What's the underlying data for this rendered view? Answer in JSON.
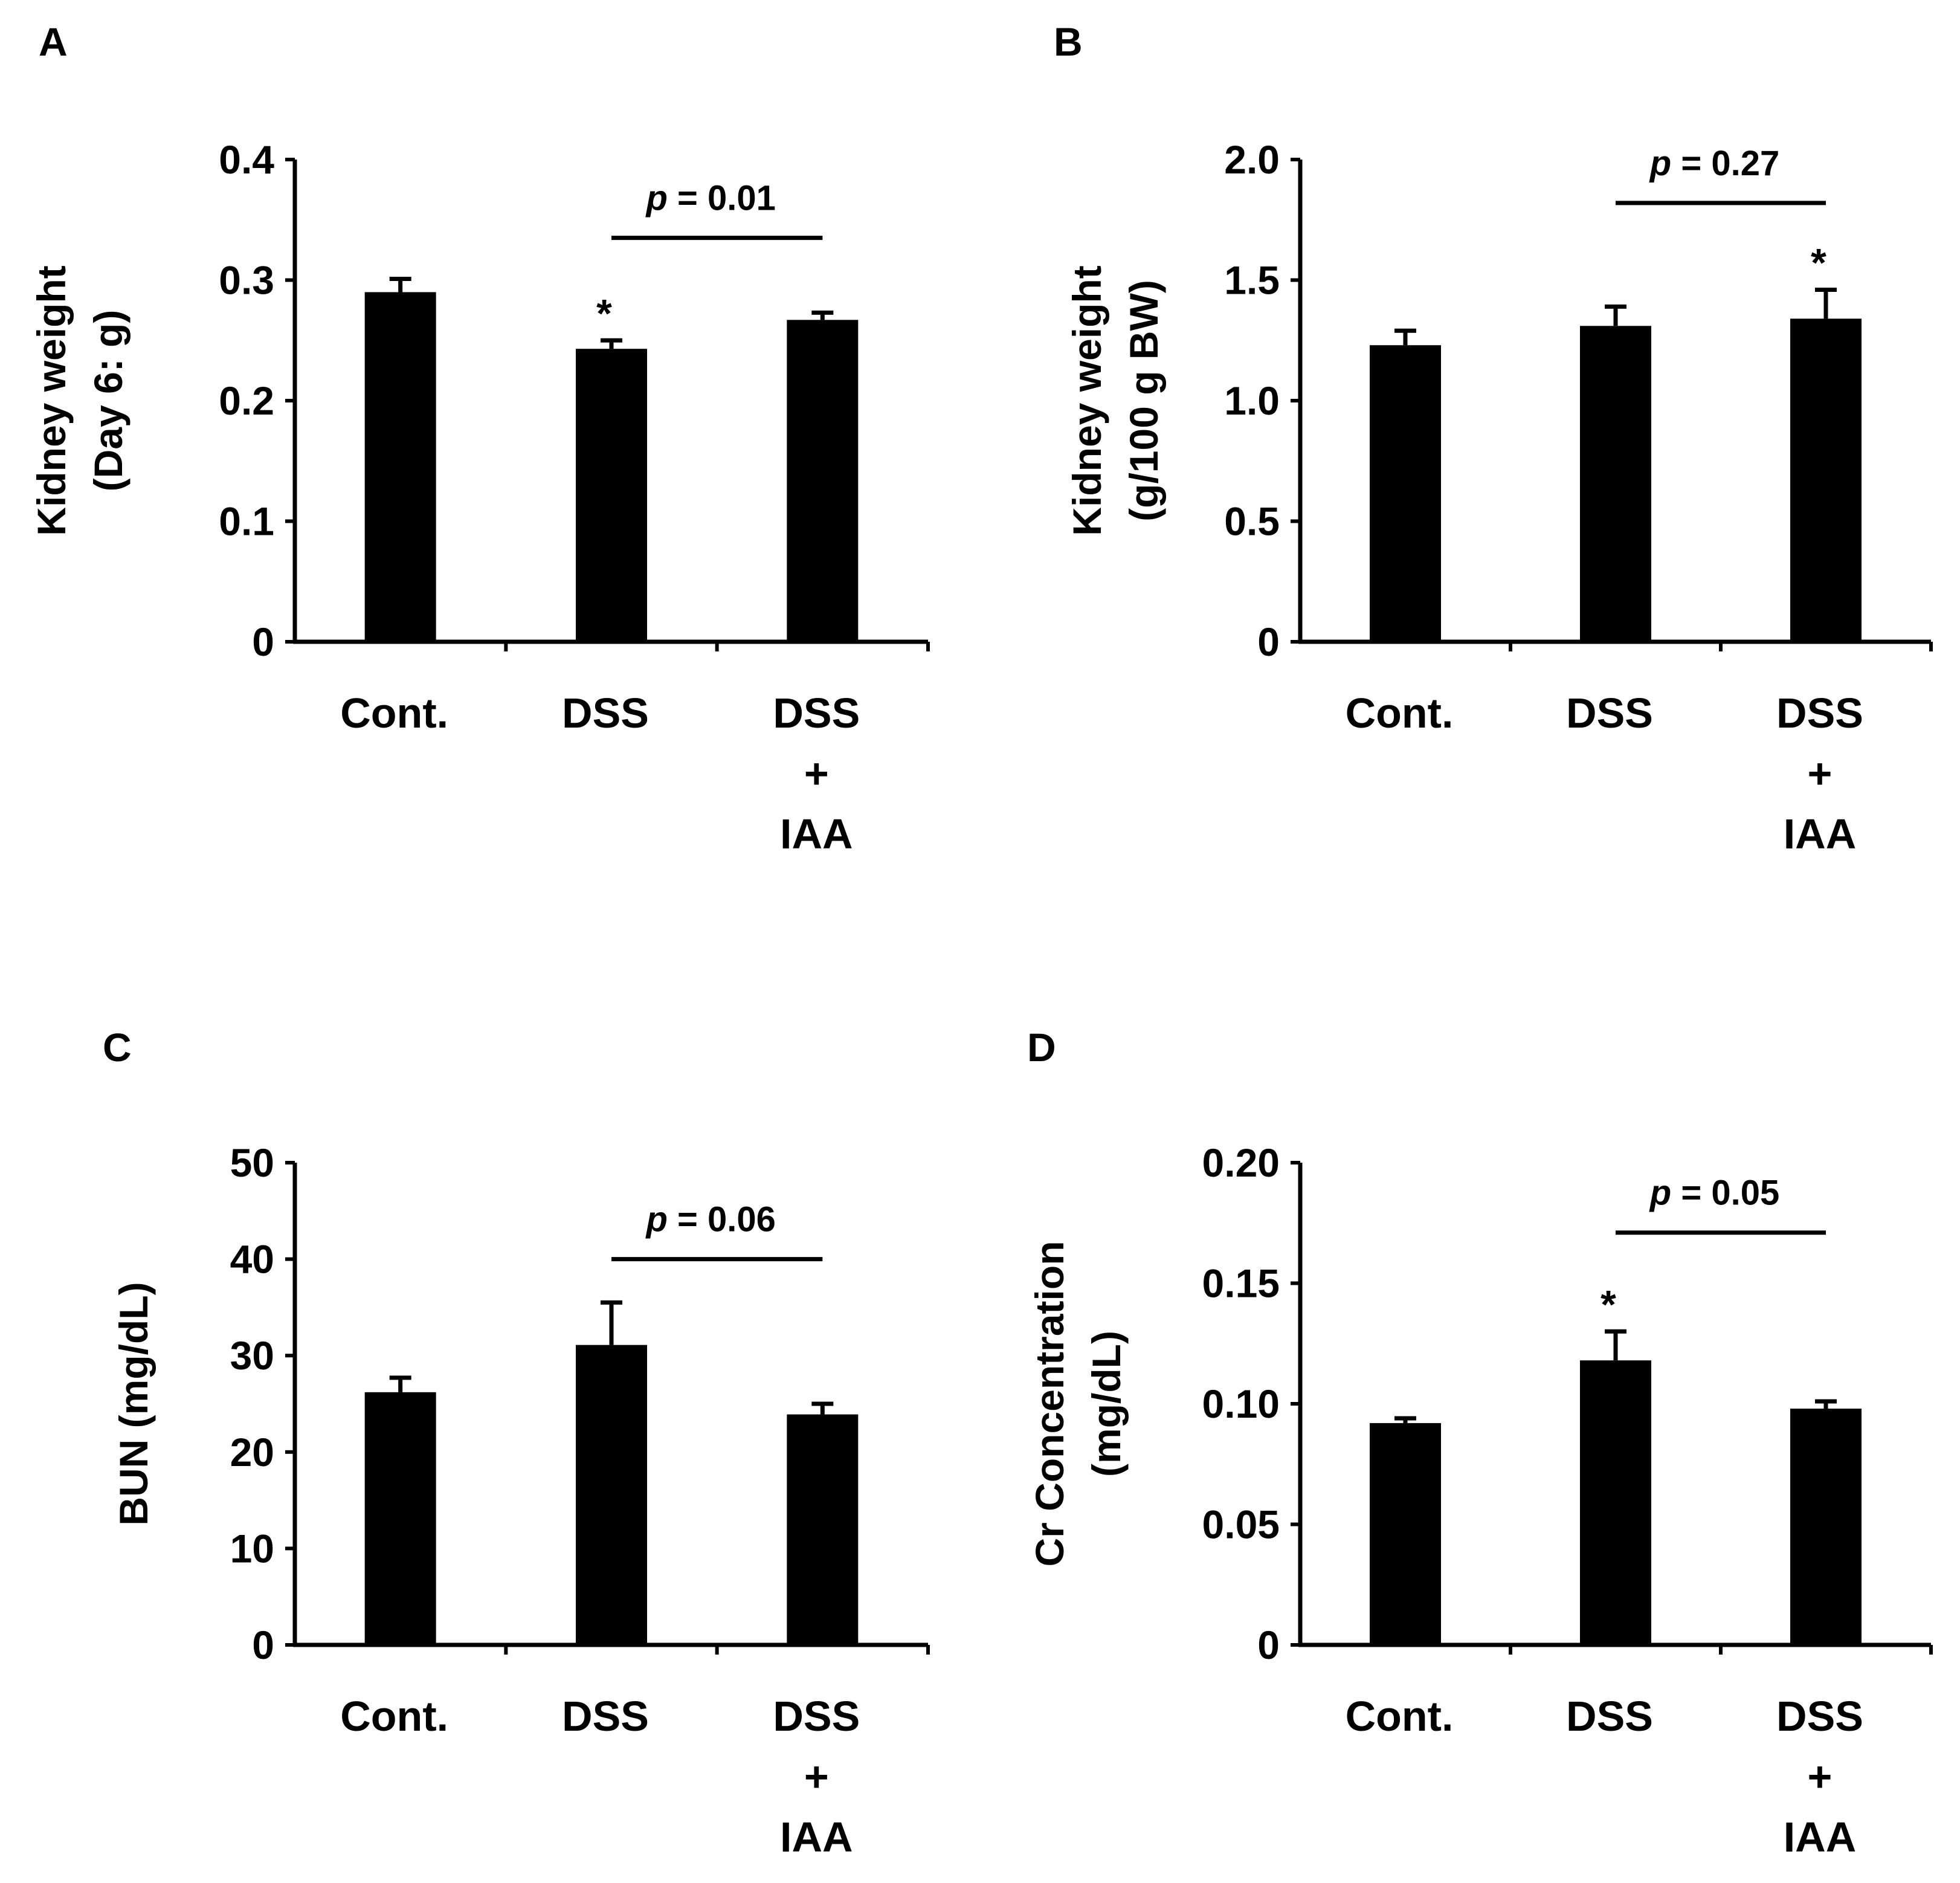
{
  "figure": {
    "colors": {
      "bar": "#000000",
      "axis": "#000000",
      "background": "#ffffff"
    }
  },
  "chart_data": [
    {
      "panel": "A",
      "type": "bar",
      "categories": [
        [
          "Cont."
        ],
        [
          "DSS"
        ],
        [
          "DSS",
          "+",
          "IAA"
        ]
      ],
      "values": [
        0.29,
        0.243,
        0.267
      ],
      "errors": [
        0.011,
        0.007,
        0.006
      ],
      "ylabel": [
        "Kidney weight",
        "(Day 6: g)"
      ],
      "ylim": [
        0,
        0.4
      ],
      "yticks": [
        0,
        0.1,
        0.2,
        0.3,
        0.4
      ],
      "ytick_labels": [
        "0",
        "0.1",
        "0.2",
        "0.3",
        "0.4"
      ],
      "stars": [
        false,
        true,
        false
      ],
      "comparison": {
        "from": 1,
        "to": 2,
        "level": 0.335,
        "p_prefix": "p",
        "p_value": " = 0.01"
      },
      "grid": false,
      "legend": "none"
    },
    {
      "panel": "B",
      "type": "bar",
      "categories": [
        [
          "Cont."
        ],
        [
          "DSS"
        ],
        [
          "DSS",
          "+",
          "IAA"
        ]
      ],
      "values": [
        1.23,
        1.31,
        1.34
      ],
      "errors": [
        0.06,
        0.08,
        0.12
      ],
      "ylabel": [
        "Kidney weight",
        "(g/100 g BW)"
      ],
      "ylim": [
        0,
        2.0
      ],
      "yticks": [
        0,
        0.5,
        1.0,
        1.5,
        2.0
      ],
      "ytick_labels": [
        "0",
        "0.5",
        "1.0",
        "1.5",
        "2.0"
      ],
      "stars": [
        false,
        false,
        true
      ],
      "comparison": {
        "from": 1,
        "to": 2,
        "level": 1.82,
        "p_prefix": "p",
        "p_value": " = 0.27"
      },
      "grid": false,
      "legend": "none"
    },
    {
      "panel": "C",
      "type": "bar",
      "categories": [
        [
          "Cont."
        ],
        [
          "DSS"
        ],
        [
          "DSS",
          "+",
          "IAA"
        ]
      ],
      "values": [
        26.2,
        31.1,
        23.9
      ],
      "errors": [
        1.5,
        4.4,
        1.1
      ],
      "ylabel": [
        "BUN (mg/dL)"
      ],
      "ylim": [
        0,
        50
      ],
      "yticks": [
        0,
        10,
        20,
        30,
        40,
        50
      ],
      "ytick_labels": [
        "0",
        "10",
        "20",
        "30",
        "40",
        "50"
      ],
      "stars": [
        false,
        false,
        false
      ],
      "comparison": {
        "from": 1,
        "to": 2,
        "level": 40.0,
        "p_prefix": "p",
        "p_value": " = 0.06"
      },
      "grid": false,
      "legend": "none"
    },
    {
      "panel": "D",
      "type": "bar",
      "categories": [
        [
          "Cont."
        ],
        [
          "DSS"
        ],
        [
          "DSS",
          "+",
          "IAA"
        ]
      ],
      "values": [
        0.092,
        0.118,
        0.098
      ],
      "errors": [
        0.002,
        0.012,
        0.003
      ],
      "ylabel": [
        "Cr Concentration",
        "(mg/dL)"
      ],
      "ylim": [
        0,
        0.2
      ],
      "yticks": [
        0,
        0.05,
        0.1,
        0.15,
        0.2
      ],
      "ytick_labels": [
        "0",
        "0.05",
        "0.10",
        "0.15",
        "0.20"
      ],
      "stars": [
        false,
        true,
        false
      ],
      "comparison": {
        "from": 1,
        "to": 2,
        "level": 0.171,
        "p_prefix": "p",
        "p_value": " = 0.05"
      },
      "grid": false,
      "legend": "none"
    }
  ]
}
